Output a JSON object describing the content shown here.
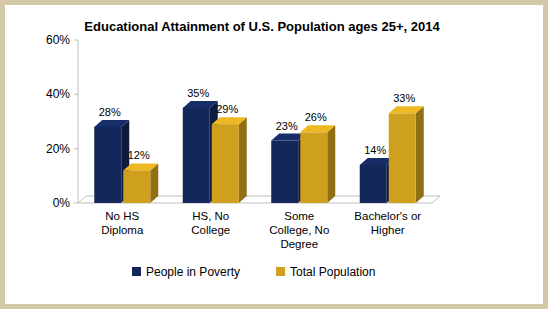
{
  "chart_data": {
    "type": "bar",
    "title": "Educational Attainment of U.S. Population ages 25+, 2014",
    "categories": [
      "No HS Diploma",
      "HS, No College",
      "Some College, No Degree",
      "Bachelor's or Higher"
    ],
    "series": [
      {
        "name": "People in Poverty",
        "color": "#14275a",
        "values": [
          28,
          35,
          23,
          14
        ],
        "value_labels": [
          "28%",
          "35%",
          "23%",
          "14%"
        ]
      },
      {
        "name": "Total Population",
        "color": "#cfa01e",
        "values": [
          12,
          29,
          26,
          33
        ],
        "value_labels": [
          "12%",
          "29%",
          "26%",
          "33%"
        ]
      }
    ],
    "ylim": [
      0,
      60
    ],
    "yticks": [
      {
        "value": 0,
        "label": "0%"
      },
      {
        "value": 20,
        "label": "20%"
      },
      {
        "value": 40,
        "label": "40%"
      },
      {
        "value": 60,
        "label": "60%"
      }
    ],
    "grid": false,
    "legend": "bottom",
    "data_labels": true
  }
}
